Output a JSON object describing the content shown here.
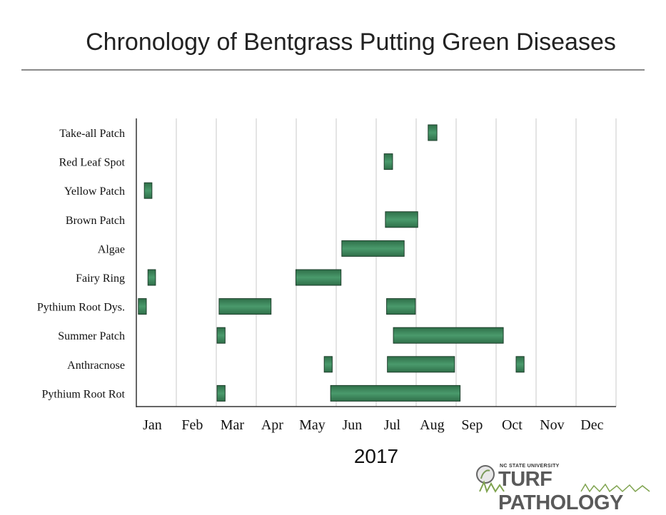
{
  "title": "Chronology of Bentgrass Putting Green Diseases",
  "year_label": "2017",
  "logo": {
    "university": "NC STATE UNIVERSITY",
    "name": "TURF PATHOLOGY"
  },
  "colors": {
    "bar_fill": "#3c8a5c",
    "bar_stroke": "#1e3f2c",
    "grid": "#c8c8c8",
    "axis": "#333333",
    "rule": "#8a8a8a"
  },
  "chart_data": {
    "type": "gantt",
    "title": "Chronology of Bentgrass Putting Green Diseases",
    "xlabel": "2017",
    "x_unit": "month",
    "x_categories": [
      "Jan",
      "Feb",
      "Mar",
      "Apr",
      "May",
      "Jun",
      "Jul",
      "Aug",
      "Sep",
      "Oct",
      "Nov",
      "Dec"
    ],
    "xlim": [
      0,
      12
    ],
    "grid": true,
    "diseases": [
      {
        "name": "Take-all Patch",
        "periods": [
          [
            7.3,
            7.52
          ]
        ]
      },
      {
        "name": "Red Leaf Spot",
        "periods": [
          [
            6.2,
            6.41
          ]
        ]
      },
      {
        "name": "Yellow Patch",
        "periods": [
          [
            0.2,
            0.39
          ]
        ]
      },
      {
        "name": "Brown Patch",
        "periods": [
          [
            6.23,
            7.04
          ]
        ]
      },
      {
        "name": "Algae",
        "periods": [
          [
            5.14,
            6.7
          ]
        ]
      },
      {
        "name": "Fairy Ring",
        "periods": [
          [
            0.29,
            0.48
          ],
          [
            3.99,
            5.12
          ]
        ]
      },
      {
        "name": "Pythium Root Dys.",
        "periods": [
          [
            0.05,
            0.25
          ],
          [
            2.07,
            3.37
          ],
          [
            6.26,
            6.98
          ]
        ]
      },
      {
        "name": "Summer Patch",
        "periods": [
          [
            2.02,
            2.22
          ],
          [
            6.43,
            9.18
          ]
        ]
      },
      {
        "name": "Anthracnose",
        "periods": [
          [
            4.7,
            4.9
          ],
          [
            6.28,
            7.96
          ],
          [
            9.5,
            9.7
          ]
        ]
      },
      {
        "name": "Pythium Root Rot",
        "periods": [
          [
            2.02,
            2.22
          ],
          [
            4.86,
            8.1
          ]
        ]
      }
    ]
  }
}
